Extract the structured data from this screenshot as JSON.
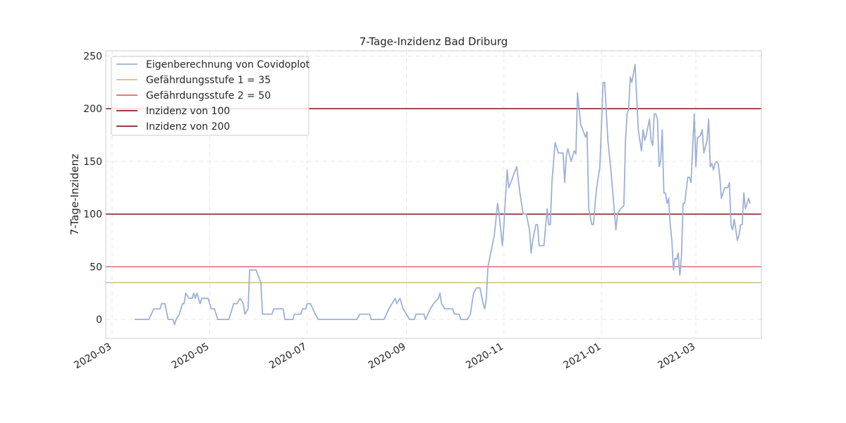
{
  "chart_data": {
    "type": "line",
    "title": "7-Tage-Inzidenz Bad Driburg",
    "xlabel": "",
    "ylabel": "7-Tage-Inzidenz",
    "xlim": [
      "2020-02-26",
      "2021-04-11"
    ],
    "ylim": [
      -18,
      255
    ],
    "grid": true,
    "legend_position": "top-left",
    "x_ticks": [
      "2020-03",
      "2020-05",
      "2020-07",
      "2020-09",
      "2020-11",
      "2021-01",
      "2021-03"
    ],
    "x_tick_dates": [
      "2020-03-01",
      "2020-05-01",
      "2020-07-01",
      "2020-09-01",
      "2020-11-01",
      "2021-01-01",
      "2021-03-01"
    ],
    "y_ticks": [
      0,
      50,
      100,
      150,
      200,
      250
    ],
    "series": [
      {
        "name": "Eigenberechnung von Covidoplot",
        "color": "#9db1d3",
        "points": [
          [
            "2020-03-15",
            0
          ],
          [
            "2020-03-24",
            0
          ],
          [
            "2020-03-27",
            10
          ],
          [
            "2020-03-31",
            10
          ],
          [
            "2020-04-01",
            15
          ],
          [
            "2020-04-03",
            15
          ],
          [
            "2020-04-05",
            0
          ],
          [
            "2020-04-08",
            0
          ],
          [
            "2020-04-09",
            -5
          ],
          [
            "2020-04-10",
            0
          ],
          [
            "2020-04-12",
            5
          ],
          [
            "2020-04-14",
            15
          ],
          [
            "2020-04-15",
            15
          ],
          [
            "2020-04-16",
            25
          ],
          [
            "2020-04-18",
            20
          ],
          [
            "2020-04-20",
            20
          ],
          [
            "2020-04-21",
            25
          ],
          [
            "2020-04-22",
            20
          ],
          [
            "2020-04-23",
            25
          ],
          [
            "2020-04-25",
            15
          ],
          [
            "2020-04-26",
            20
          ],
          [
            "2020-04-30",
            20
          ],
          [
            "2020-05-02",
            10
          ],
          [
            "2020-05-04",
            10
          ],
          [
            "2020-05-06",
            0
          ],
          [
            "2020-05-13",
            0
          ],
          [
            "2020-05-16",
            15
          ],
          [
            "2020-05-18",
            15
          ],
          [
            "2020-05-20",
            20
          ],
          [
            "2020-05-22",
            15
          ],
          [
            "2020-05-23",
            5
          ],
          [
            "2020-05-25",
            10
          ],
          [
            "2020-05-26",
            47
          ],
          [
            "2020-05-30",
            47
          ],
          [
            "2020-06-02",
            35
          ],
          [
            "2020-06-03",
            5
          ],
          [
            "2020-06-09",
            5
          ],
          [
            "2020-06-10",
            10
          ],
          [
            "2020-06-16",
            10
          ],
          [
            "2020-06-17",
            0
          ],
          [
            "2020-06-22",
            0
          ],
          [
            "2020-06-23",
            5
          ],
          [
            "2020-06-27",
            5
          ],
          [
            "2020-06-28",
            10
          ],
          [
            "2020-06-30",
            10
          ],
          [
            "2020-07-01",
            15
          ],
          [
            "2020-07-03",
            15
          ],
          [
            "2020-07-06",
            5
          ],
          [
            "2020-07-08",
            0
          ],
          [
            "2020-07-30",
            0
          ],
          [
            "2020-08-01",
            0
          ],
          [
            "2020-08-03",
            5
          ],
          [
            "2020-08-09",
            5
          ],
          [
            "2020-08-10",
            0
          ],
          [
            "2020-08-18",
            0
          ],
          [
            "2020-08-21",
            10
          ],
          [
            "2020-08-23",
            15
          ],
          [
            "2020-08-25",
            20
          ],
          [
            "2020-08-26",
            15
          ],
          [
            "2020-08-28",
            20
          ],
          [
            "2020-08-30",
            10
          ],
          [
            "2020-09-01",
            5
          ],
          [
            "2020-09-03",
            0
          ],
          [
            "2020-09-06",
            0
          ],
          [
            "2020-09-07",
            5
          ],
          [
            "2020-09-12",
            5
          ],
          [
            "2020-09-13",
            0
          ],
          [
            "2020-09-16",
            10
          ],
          [
            "2020-09-18",
            15
          ],
          [
            "2020-09-21",
            20
          ],
          [
            "2020-09-22",
            25
          ],
          [
            "2020-09-23",
            15
          ],
          [
            "2020-09-25",
            10
          ],
          [
            "2020-09-30",
            10
          ],
          [
            "2020-10-01",
            5
          ],
          [
            "2020-10-04",
            5
          ],
          [
            "2020-10-05",
            0
          ],
          [
            "2020-10-09",
            0
          ],
          [
            "2020-10-11",
            5
          ],
          [
            "2020-10-12",
            15
          ],
          [
            "2020-10-13",
            25
          ],
          [
            "2020-10-15",
            30
          ],
          [
            "2020-10-17",
            30
          ],
          [
            "2020-10-19",
            15
          ],
          [
            "2020-10-20",
            10
          ],
          [
            "2020-10-21",
            20
          ],
          [
            "2020-10-22",
            50
          ],
          [
            "2020-10-26",
            80
          ],
          [
            "2020-10-28",
            110
          ],
          [
            "2020-10-29",
            100
          ],
          [
            "2020-10-31",
            70
          ],
          [
            "2020-11-01",
            90
          ],
          [
            "2020-11-03",
            142
          ],
          [
            "2020-11-04",
            125
          ],
          [
            "2020-11-09",
            145
          ],
          [
            "2020-11-11",
            120
          ],
          [
            "2020-11-13",
            100
          ],
          [
            "2020-11-15",
            100
          ],
          [
            "2020-11-17",
            85
          ],
          [
            "2020-11-18",
            63
          ],
          [
            "2020-11-19",
            75
          ],
          [
            "2020-11-21",
            90
          ],
          [
            "2020-11-22",
            90
          ],
          [
            "2020-11-23",
            70
          ],
          [
            "2020-11-26",
            70
          ],
          [
            "2020-11-28",
            105
          ],
          [
            "2020-11-29",
            90
          ],
          [
            "2020-11-30",
            90
          ],
          [
            "2020-12-01",
            130
          ],
          [
            "2020-12-03",
            168
          ],
          [
            "2020-12-05",
            158
          ],
          [
            "2020-12-08",
            158
          ],
          [
            "2020-12-09",
            130
          ],
          [
            "2020-12-10",
            155
          ],
          [
            "2020-12-11",
            162
          ],
          [
            "2020-12-13",
            150
          ],
          [
            "2020-12-15",
            160
          ],
          [
            "2020-12-16",
            157
          ],
          [
            "2020-12-17",
            215
          ],
          [
            "2020-12-19",
            185
          ],
          [
            "2020-12-22",
            173
          ],
          [
            "2020-12-23",
            178
          ],
          [
            "2020-12-24",
            105
          ],
          [
            "2020-12-26",
            90
          ],
          [
            "2020-12-27",
            90
          ],
          [
            "2020-12-28",
            110
          ],
          [
            "2020-12-29",
            125
          ],
          [
            "2020-12-31",
            145
          ],
          [
            "2021-01-02",
            225
          ],
          [
            "2021-01-03",
            225
          ],
          [
            "2021-01-05",
            170
          ],
          [
            "2021-01-07",
            140
          ],
          [
            "2021-01-10",
            85
          ],
          [
            "2021-01-11",
            100
          ],
          [
            "2021-01-13",
            105
          ],
          [
            "2021-01-15",
            108
          ],
          [
            "2021-01-16",
            170
          ],
          [
            "2021-01-17",
            195
          ],
          [
            "2021-01-18",
            200
          ],
          [
            "2021-01-19",
            230
          ],
          [
            "2021-01-20",
            225
          ],
          [
            "2021-01-22",
            242
          ],
          [
            "2021-01-24",
            180
          ],
          [
            "2021-01-25",
            170
          ],
          [
            "2021-01-26",
            160
          ],
          [
            "2021-01-27",
            180
          ],
          [
            "2021-01-28",
            170
          ],
          [
            "2021-01-29",
            175
          ],
          [
            "2021-01-31",
            190
          ],
          [
            "2021-02-01",
            170
          ],
          [
            "2021-02-02",
            165
          ],
          [
            "2021-02-03",
            195
          ],
          [
            "2021-02-04",
            195
          ],
          [
            "2021-02-05",
            190
          ],
          [
            "2021-02-06",
            145
          ],
          [
            "2021-02-07",
            150
          ],
          [
            "2021-02-08",
            180
          ],
          [
            "2021-02-09",
            120
          ],
          [
            "2021-02-10",
            120
          ],
          [
            "2021-02-11",
            110
          ],
          [
            "2021-02-12",
            115
          ],
          [
            "2021-02-13",
            90
          ],
          [
            "2021-02-14",
            75
          ],
          [
            "2021-02-15",
            47
          ],
          [
            "2021-02-16",
            58
          ],
          [
            "2021-02-17",
            57
          ],
          [
            "2021-02-18",
            63
          ],
          [
            "2021-02-19",
            42
          ],
          [
            "2021-02-20",
            60
          ],
          [
            "2021-02-21",
            110
          ],
          [
            "2021-02-22",
            110
          ],
          [
            "2021-02-24",
            135
          ],
          [
            "2021-02-25",
            135
          ],
          [
            "2021-02-26",
            130
          ],
          [
            "2021-02-28",
            195
          ],
          [
            "2021-03-01",
            145
          ],
          [
            "2021-03-02",
            172
          ],
          [
            "2021-03-04",
            175
          ],
          [
            "2021-03-05",
            180
          ],
          [
            "2021-03-06",
            158
          ],
          [
            "2021-03-08",
            170
          ],
          [
            "2021-03-09",
            190
          ],
          [
            "2021-03-10",
            145
          ],
          [
            "2021-03-11",
            148
          ],
          [
            "2021-03-12",
            142
          ],
          [
            "2021-03-13",
            148
          ],
          [
            "2021-03-14",
            150
          ],
          [
            "2021-03-15",
            148
          ],
          [
            "2021-03-16",
            135
          ],
          [
            "2021-03-17",
            115
          ],
          [
            "2021-03-18",
            120
          ],
          [
            "2021-03-19",
            125
          ],
          [
            "2021-03-21",
            125
          ],
          [
            "2021-03-22",
            130
          ],
          [
            "2021-03-23",
            90
          ],
          [
            "2021-03-24",
            85
          ],
          [
            "2021-03-25",
            95
          ],
          [
            "2021-03-26",
            85
          ],
          [
            "2021-03-27",
            75
          ],
          [
            "2021-03-28",
            80
          ],
          [
            "2021-03-29",
            90
          ],
          [
            "2021-03-30",
            90
          ],
          [
            "2021-03-31",
            120
          ],
          [
            "2021-04-01",
            105
          ],
          [
            "2021-04-02",
            110
          ],
          [
            "2021-04-03",
            115
          ],
          [
            "2021-04-04",
            110
          ]
        ]
      }
    ],
    "hlines": [
      {
        "name": "Gefährdungsstufe 1 = 35",
        "y": 35,
        "color": "#d6bf8f"
      },
      {
        "name": "Gefährdungsstufe 2 = 50",
        "y": 50,
        "color": "#d96a6f"
      },
      {
        "name": "Inzidenz von 100",
        "y": 100,
        "color": "#8b2323"
      },
      {
        "name": "Inzidenz von 200",
        "y": 200,
        "color": "#8b2323"
      }
    ]
  }
}
